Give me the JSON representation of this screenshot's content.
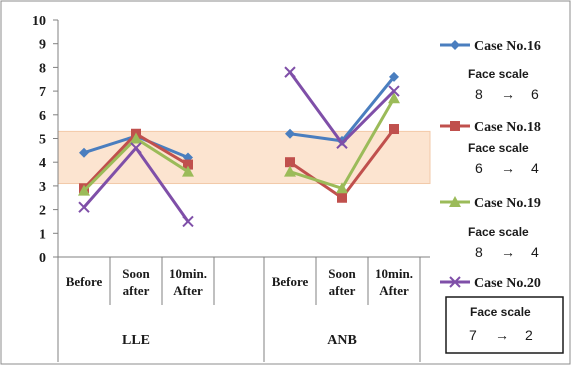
{
  "chart_data": {
    "type": "line",
    "y_ticks": [
      0,
      1,
      2,
      3,
      4,
      5,
      6,
      7,
      8,
      9,
      10
    ],
    "ylim": [
      0,
      10
    ],
    "grid": false,
    "highlight_band": {
      "from": 3.1,
      "to": 5.3,
      "color": "#fce4d0"
    },
    "legend_position": "right",
    "groups": [
      {
        "label": "LLE",
        "categories": [
          [
            "Before"
          ],
          [
            "Soon",
            "after"
          ],
          [
            "10min.",
            "After"
          ]
        ]
      },
      {
        "label": "ANB",
        "categories": [
          [
            "Before"
          ],
          [
            "Soon",
            "after"
          ],
          [
            "10min.",
            "After"
          ]
        ]
      }
    ],
    "series": [
      {
        "name": "Case No.16",
        "color": "#4a7ebf",
        "marker": "diamond",
        "groups": [
          [
            4.4,
            5.1,
            4.2
          ],
          [
            5.2,
            4.9,
            7.6
          ]
        ]
      },
      {
        "name": "Case No.18",
        "color": "#c0504d",
        "marker": "square",
        "groups": [
          [
            2.9,
            5.2,
            3.9
          ],
          [
            4.0,
            2.5,
            5.4
          ]
        ]
      },
      {
        "name": "Case No.19",
        "color": "#9bbb59",
        "marker": "triangle",
        "groups": [
          [
            2.8,
            5.0,
            3.6
          ],
          [
            3.6,
            2.9,
            6.7
          ]
        ]
      },
      {
        "name": "Case No.20",
        "color": "#7f4fa8",
        "marker": "x",
        "groups": [
          [
            2.1,
            4.6,
            1.5
          ],
          [
            7.8,
            4.8,
            7.0
          ]
        ]
      }
    ]
  },
  "legend": [
    {
      "label": "Case No.16",
      "note_title": "Face scale",
      "from": "8",
      "arrow": "→",
      "to": "6",
      "boxed": false
    },
    {
      "label": "Case No.18",
      "note_title": "Face scale",
      "from": "6",
      "arrow": "→",
      "to": "4",
      "boxed": false
    },
    {
      "label": "Case No.19",
      "note_title": "Face scale",
      "from": "8",
      "arrow": "→",
      "to": "4",
      "boxed": false
    },
    {
      "label": "Case No.20",
      "note_title": "Face scale",
      "from": "7",
      "arrow": "→",
      "to": "2",
      "boxed": true
    }
  ]
}
